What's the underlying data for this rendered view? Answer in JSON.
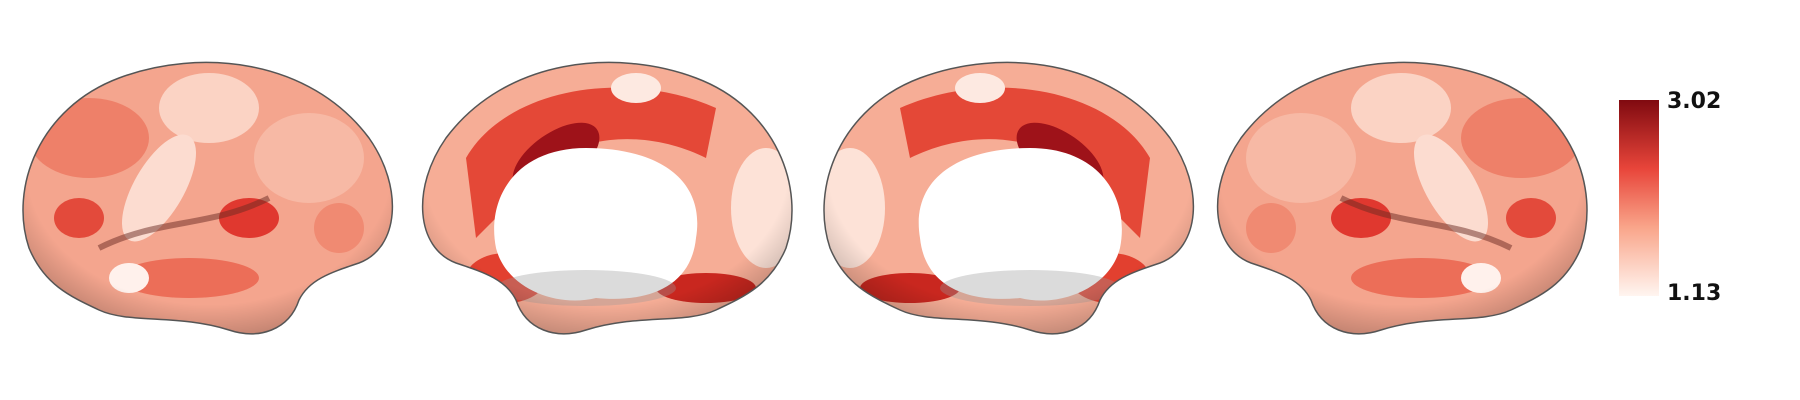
{
  "colorbar": {
    "max": 3.02,
    "min": 1.13
  }
}
